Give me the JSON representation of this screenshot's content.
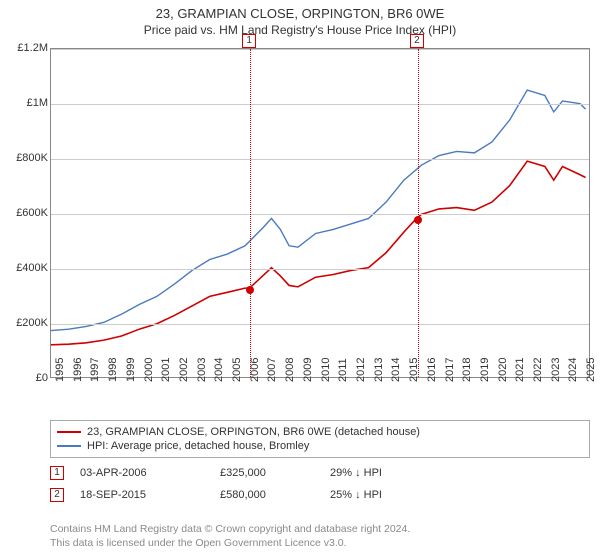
{
  "title": "23, GRAMPIAN CLOSE, ORPINGTON, BR6 0WE",
  "subtitle": "Price paid vs. HM Land Registry's House Price Index (HPI)",
  "chart": {
    "type": "line",
    "background_color": "#ffffff",
    "border_color": "#888888",
    "grid_color": "#cccccc",
    "ylim": [
      0,
      1200000
    ],
    "ytick_step": 200000,
    "ytick_labels": [
      "£0",
      "£200K",
      "£400K",
      "£600K",
      "£800K",
      "£1M",
      "£1.2M"
    ],
    "xlim": [
      1995,
      2025.5
    ],
    "xticks": [
      1995,
      1996,
      1997,
      1998,
      1999,
      2000,
      2001,
      2002,
      2003,
      2004,
      2005,
      2006,
      2007,
      2008,
      2009,
      2010,
      2011,
      2012,
      2013,
      2014,
      2015,
      2016,
      2017,
      2018,
      2019,
      2020,
      2021,
      2022,
      2023,
      2024,
      2025
    ],
    "series": [
      {
        "name": "price_paid",
        "color": "#cf0000",
        "width": 1.6,
        "label": "23, GRAMPIAN CLOSE, ORPINGTON, BR6 0WE (detached house)",
        "x": [
          1995,
          1996,
          1997,
          1998,
          1999,
          2000,
          2001,
          2002,
          2003,
          2004,
          2005,
          2006,
          2006.25,
          2007,
          2007.5,
          2008,
          2008.5,
          2009,
          2010,
          2011,
          2012,
          2013,
          2014,
          2015,
          2015.72,
          2016,
          2017,
          2018,
          2019,
          2020,
          2021,
          2022,
          2023,
          2023.5,
          2024,
          2025,
          2025.3
        ],
        "y": [
          118000,
          120000,
          125000,
          135000,
          150000,
          175000,
          195000,
          225000,
          260000,
          295000,
          310000,
          325000,
          325000,
          370000,
          400000,
          370000,
          335000,
          330000,
          365000,
          375000,
          390000,
          400000,
          455000,
          530000,
          580000,
          595000,
          615000,
          620000,
          610000,
          640000,
          700000,
          790000,
          770000,
          720000,
          770000,
          740000,
          730000
        ]
      },
      {
        "name": "hpi",
        "color": "#4a7abf",
        "width": 1.4,
        "label": "HPI: Average price, detached house, Bromley",
        "x": [
          1995,
          1996,
          1997,
          1998,
          1999,
          2000,
          2001,
          2002,
          2003,
          2004,
          2005,
          2006,
          2007,
          2007.5,
          2008,
          2008.5,
          2009,
          2010,
          2011,
          2012,
          2013,
          2014,
          2015,
          2016,
          2017,
          2018,
          2019,
          2020,
          2021,
          2022,
          2023,
          2023.5,
          2024,
          2025,
          2025.3
        ],
        "y": [
          170000,
          175000,
          185000,
          200000,
          230000,
          265000,
          295000,
          340000,
          390000,
          430000,
          450000,
          480000,
          545000,
          580000,
          540000,
          480000,
          475000,
          525000,
          540000,
          560000,
          580000,
          640000,
          720000,
          775000,
          810000,
          825000,
          820000,
          860000,
          940000,
          1050000,
          1030000,
          970000,
          1010000,
          1000000,
          980000
        ]
      }
    ],
    "markers": [
      {
        "num": "1",
        "x": 2006.25,
        "y": 325000,
        "color": "#cf0000"
      },
      {
        "num": "2",
        "x": 2015.72,
        "y": 580000,
        "color": "#cf0000"
      }
    ]
  },
  "legend": {
    "items": [
      {
        "color": "#cf0000",
        "label": "23, GRAMPIAN CLOSE, ORPINGTON, BR6 0WE (detached house)"
      },
      {
        "color": "#4a7abf",
        "label": "HPI: Average price, detached house, Bromley"
      }
    ]
  },
  "annotations": [
    {
      "num": "1",
      "color": "#cf0000",
      "date": "03-APR-2006",
      "price": "£325,000",
      "diff": "29% ↓ HPI"
    },
    {
      "num": "2",
      "color": "#cf0000",
      "date": "18-SEP-2015",
      "price": "£580,000",
      "diff": "25% ↓ HPI"
    }
  ],
  "footer": {
    "line1": "Contains HM Land Registry data © Crown copyright and database right 2024.",
    "line2": "This data is licensed under the Open Government Licence v3.0."
  }
}
